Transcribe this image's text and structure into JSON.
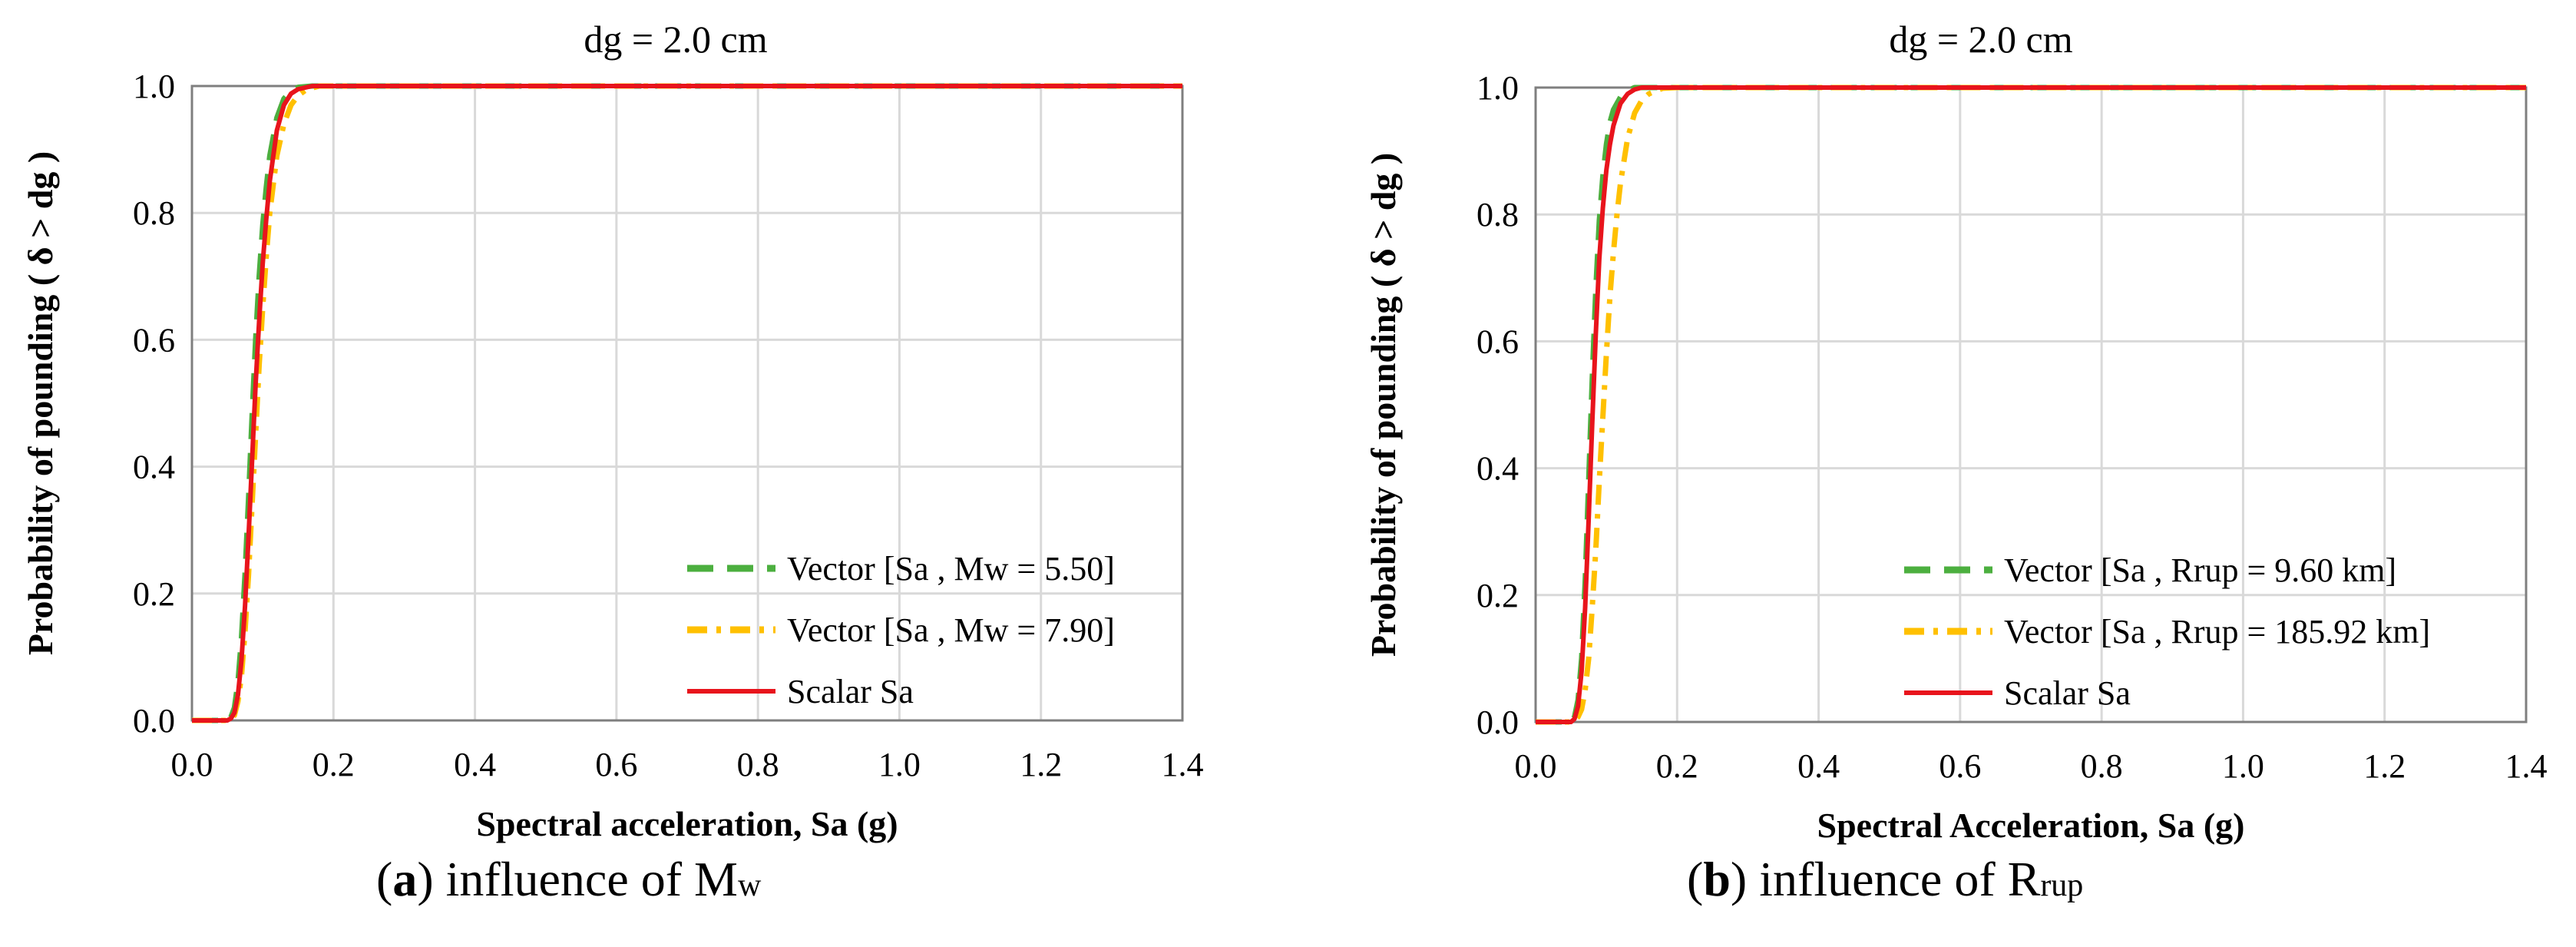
{
  "chart_data": [
    {
      "type": "line",
      "title": "dg = 2.0 cm",
      "xlabel": "Spectral acceleration, Sa (g)",
      "ylabel": "Probability of pounding ( δ > dg )",
      "xlim": [
        0,
        1.4
      ],
      "ylim": [
        0,
        1.0
      ],
      "xticks": [
        "0.0",
        "0.2",
        "0.4",
        "0.6",
        "0.8",
        "1.0",
        "1.2",
        "1.4"
      ],
      "yticks": [
        "0.0",
        "0.2",
        "0.4",
        "0.6",
        "0.8",
        "1.0"
      ],
      "grid": true,
      "legend_position": "bottom-right",
      "series": [
        {
          "name": "Vector [Sa , Mw = 5.50]",
          "color": "#4caf3f",
          "style": "dash",
          "x": [
            0,
            0.04,
            0.05,
            0.055,
            0.06,
            0.065,
            0.07,
            0.075,
            0.08,
            0.085,
            0.09,
            0.095,
            0.1,
            0.105,
            0.11,
            0.12,
            0.13,
            0.14,
            0.15,
            0.17,
            0.2,
            1.4
          ],
          "y": [
            0,
            0.0,
            0.0,
            0.005,
            0.02,
            0.06,
            0.13,
            0.23,
            0.35,
            0.48,
            0.6,
            0.7,
            0.78,
            0.84,
            0.89,
            0.95,
            0.98,
            0.993,
            0.998,
            1.0,
            1.0,
            1.0
          ]
        },
        {
          "name": "Vector [Sa , Mw = 7.90]",
          "color": "#ffc000",
          "style": "dashdot",
          "x": [
            0,
            0.04,
            0.05,
            0.055,
            0.06,
            0.065,
            0.07,
            0.075,
            0.08,
            0.085,
            0.09,
            0.095,
            0.1,
            0.105,
            0.11,
            0.12,
            0.13,
            0.14,
            0.15,
            0.16,
            0.17,
            0.18,
            0.2,
            1.4
          ],
          "y": [
            0,
            0.0,
            0.0,
            0.002,
            0.008,
            0.03,
            0.07,
            0.14,
            0.23,
            0.34,
            0.45,
            0.56,
            0.65,
            0.73,
            0.8,
            0.89,
            0.94,
            0.97,
            0.985,
            0.993,
            0.997,
            1.0,
            1.0,
            1.0
          ]
        },
        {
          "name": "Scalar Sa",
          "color": "#e8141c",
          "style": "solid",
          "x": [
            0,
            0.04,
            0.05,
            0.055,
            0.06,
            0.065,
            0.07,
            0.075,
            0.08,
            0.085,
            0.09,
            0.095,
            0.1,
            0.105,
            0.11,
            0.12,
            0.13,
            0.14,
            0.15,
            0.17,
            0.2,
            1.4
          ],
          "y": [
            0,
            0.0,
            0.0,
            0.003,
            0.012,
            0.04,
            0.095,
            0.18,
            0.29,
            0.41,
            0.53,
            0.63,
            0.72,
            0.79,
            0.85,
            0.93,
            0.97,
            0.988,
            0.995,
            1.0,
            1.0,
            1.0
          ]
        }
      ]
    },
    {
      "type": "line",
      "title": "dg = 2.0 cm",
      "xlabel": "Spectral Acceleration, Sa (g)",
      "ylabel": "Probability of pounding ( δ > dg )",
      "xlim": [
        0,
        1.4
      ],
      "ylim": [
        0,
        1.0
      ],
      "xticks": [
        "0.0",
        "0.2",
        "0.4",
        "0.6",
        "0.8",
        "1.0",
        "1.2",
        "1.4"
      ],
      "yticks": [
        "0.0",
        "0.2",
        "0.4",
        "0.6",
        "0.8",
        "1.0"
      ],
      "grid": true,
      "legend_position": "bottom-right",
      "series": [
        {
          "name": "Vector [Sa , Rrup = 9.60 km]",
          "color": "#4caf3f",
          "style": "dash",
          "x": [
            0,
            0.04,
            0.05,
            0.055,
            0.06,
            0.065,
            0.07,
            0.075,
            0.08,
            0.085,
            0.09,
            0.095,
            0.1,
            0.105,
            0.11,
            0.12,
            0.13,
            0.14,
            0.15,
            0.17,
            1.4
          ],
          "y": [
            0,
            0.0,
            0.0,
            0.008,
            0.035,
            0.1,
            0.22,
            0.38,
            0.54,
            0.68,
            0.79,
            0.86,
            0.91,
            0.945,
            0.965,
            0.985,
            0.995,
            1.0,
            1.0,
            1.0,
            1.0
          ]
        },
        {
          "name": "Vector [Sa , Rrup =  185.92 km]",
          "color": "#ffc000",
          "style": "dashdot",
          "x": [
            0,
            0.04,
            0.05,
            0.055,
            0.06,
            0.065,
            0.07,
            0.075,
            0.08,
            0.085,
            0.09,
            0.095,
            0.1,
            0.105,
            0.11,
            0.115,
            0.12,
            0.13,
            0.14,
            0.15,
            0.16,
            0.17,
            0.18,
            0.2,
            1.4
          ],
          "y": [
            0,
            0.0,
            0.0,
            0.002,
            0.008,
            0.02,
            0.05,
            0.1,
            0.18,
            0.27,
            0.38,
            0.48,
            0.58,
            0.67,
            0.74,
            0.8,
            0.85,
            0.92,
            0.96,
            0.98,
            0.99,
            0.995,
            0.999,
            1.0,
            1.0
          ]
        },
        {
          "name": "Scalar Sa",
          "color": "#e8141c",
          "style": "solid",
          "x": [
            0,
            0.04,
            0.05,
            0.055,
            0.06,
            0.065,
            0.07,
            0.075,
            0.08,
            0.085,
            0.09,
            0.095,
            0.1,
            0.105,
            0.11,
            0.12,
            0.13,
            0.14,
            0.15,
            0.17,
            0.2,
            1.4
          ],
          "y": [
            0,
            0.0,
            0.0,
            0.005,
            0.025,
            0.08,
            0.18,
            0.32,
            0.47,
            0.61,
            0.73,
            0.81,
            0.87,
            0.91,
            0.94,
            0.975,
            0.99,
            0.997,
            1.0,
            1.0,
            1.0,
            1.0
          ]
        }
      ]
    }
  ],
  "captions": [
    {
      "letter": "a",
      "text": " influence of M",
      "sub": "w"
    },
    {
      "letter": "b",
      "text": " influence of R",
      "sub": "rup"
    }
  ]
}
